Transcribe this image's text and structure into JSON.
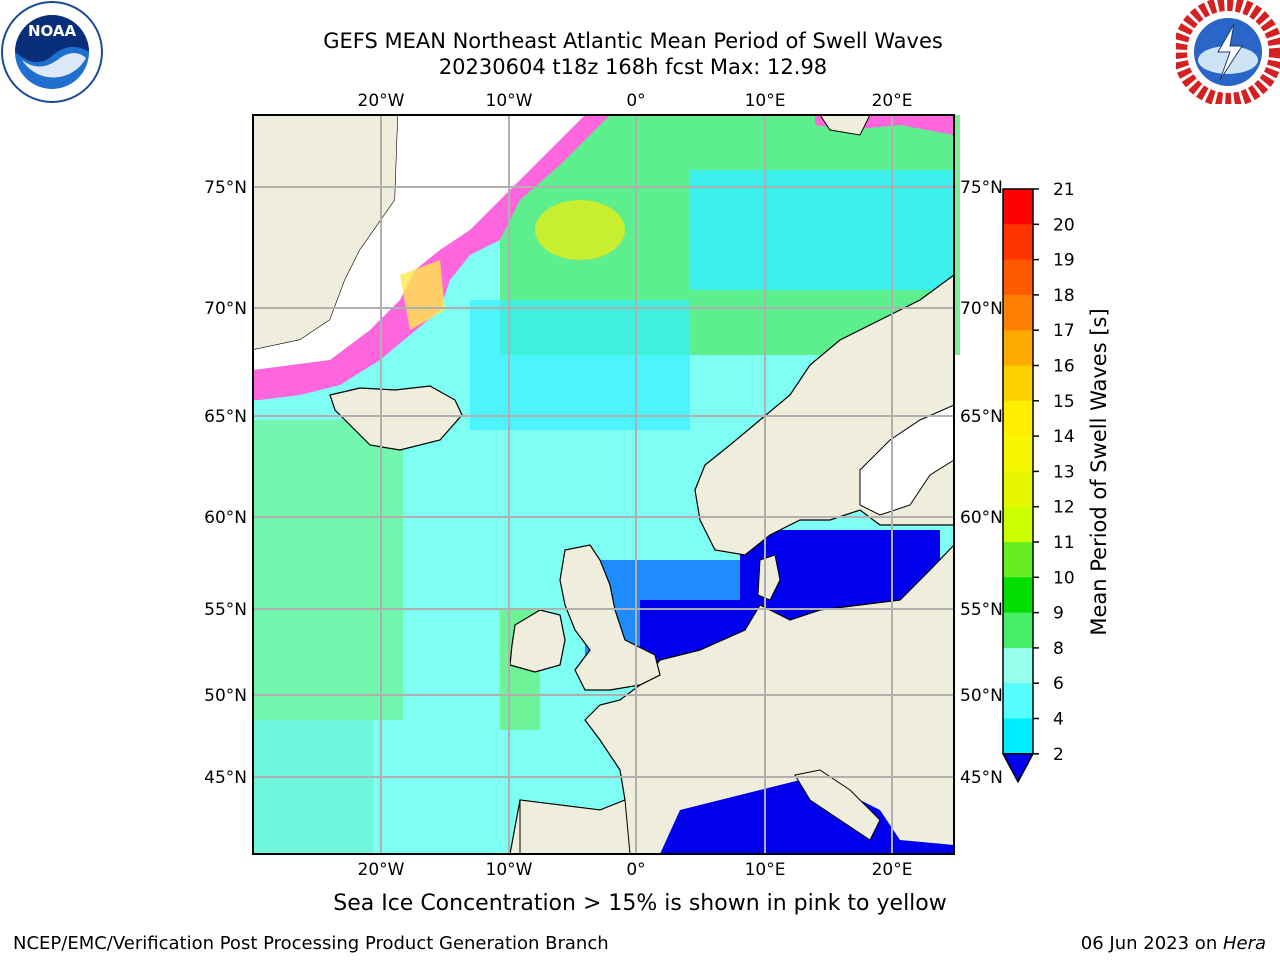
{
  "header": {
    "title_line1": "GEFS MEAN Northeast Atlantic Mean Period of Swell Waves",
    "title_line2": "20230604 t18z 168h fcst   Max: 12.98"
  },
  "logos": {
    "left": "noaa-logo",
    "right": "national-weather-service-logo",
    "left_text": "NOAA",
    "right_text": "NATIONAL WEATHER SERVICE"
  },
  "map": {
    "lon_labels": [
      "20°W",
      "10°W",
      "0°",
      "10°E",
      "20°E"
    ],
    "lat_labels": [
      "75°N",
      "70°N",
      "65°N",
      "60°N",
      "55°N",
      "50°N",
      "45°N"
    ],
    "colors": {
      "land": "#efeddc",
      "ice_white": "#ffffff",
      "ice_pink": "#ff66dd",
      "ice_yellow": "#ffe84a",
      "grid": "#b0b0b0"
    }
  },
  "colorbar": {
    "label": "Mean Period of Swell Waves [s]",
    "ticks": [
      "21",
      "20",
      "19",
      "18",
      "17",
      "16",
      "15",
      "14",
      "13",
      "12",
      "11",
      "10",
      "9",
      "8",
      "6",
      "4",
      "2"
    ],
    "colors": [
      "#ff0000",
      "#ff3300",
      "#ff5a00",
      "#ff8000",
      "#ffaa00",
      "#ffd000",
      "#ffee00",
      "#f7f700",
      "#e6f700",
      "#ccff00",
      "#66ee22",
      "#00dd00",
      "#44ee66",
      "#99ffee",
      "#55ffff",
      "#00eeff",
      "#0077ff",
      "#0000ee"
    ]
  },
  "caption": "Sea Ice Concentration > 15% is shown in pink to yellow",
  "footer": {
    "left": "NCEP/EMC/Verification Post Processing Product Generation Branch",
    "right_prefix": "06 Jun 2023 on ",
    "right_host": "Hera"
  }
}
